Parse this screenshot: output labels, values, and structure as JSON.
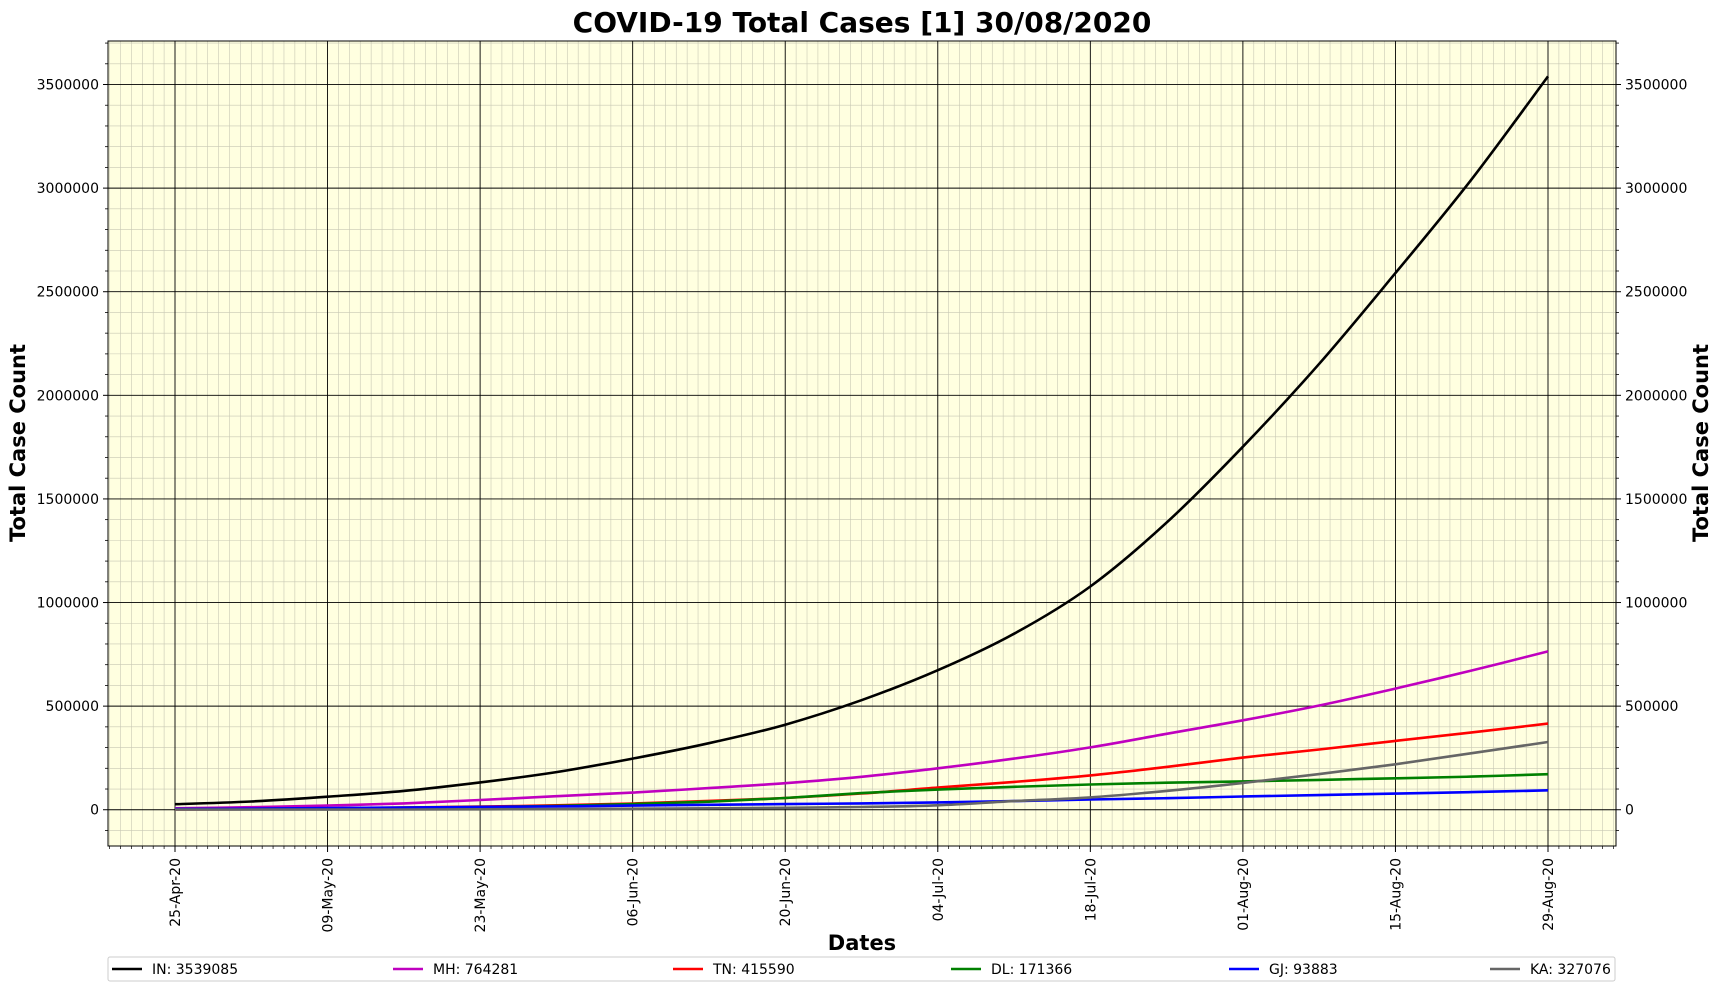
{
  "chart_data": {
    "type": "line",
    "title": "COVID-19 Total Cases [1] 30/08/2020",
    "xlabel": "Dates",
    "ylabel": "Total Case Count",
    "ylabel_right": "Total Case Count",
    "x": [
      "25-Apr-20",
      "02-May-20",
      "09-May-20",
      "16-May-20",
      "23-May-20",
      "30-May-20",
      "06-Jun-20",
      "13-Jun-20",
      "20-Jun-20",
      "27-Jun-20",
      "04-Jul-20",
      "11-Jul-20",
      "18-Jul-20",
      "25-Jul-20",
      "01-Aug-20",
      "08-Aug-20",
      "15-Aug-20",
      "22-Aug-20",
      "29-Aug-20"
    ],
    "x_tick_labels": [
      "25-Apr-20",
      "09-May-20",
      "23-May-20",
      "06-Jun-20",
      "20-Jun-20",
      "04-Jul-20",
      "18-Jul-20",
      "01-Aug-20",
      "15-Aug-20",
      "29-Aug-20"
    ],
    "y_ticks": [
      0,
      500000,
      1000000,
      1500000,
      2000000,
      2500000,
      3000000,
      3500000
    ],
    "ylim": [
      -175000,
      3710000
    ],
    "grid": true,
    "minor_grid": true,
    "legend_position": "bottom",
    "background": "#ffffe0",
    "series": [
      {
        "name": "IN: 3539085",
        "color": "#000000",
        "values": [
          26500,
          39900,
          62900,
          90900,
          131900,
          181800,
          246600,
          320900,
          410400,
          528800,
          673200,
          849500,
          1077600,
          1385600,
          1751900,
          2152000,
          2590000,
          3043000,
          3539085
        ]
      },
      {
        "name": "MH: 764281",
        "color": "#bf00bf",
        "values": [
          6800,
          12300,
          20200,
          30700,
          47200,
          65200,
          82900,
          104600,
          128200,
          159100,
          200000,
          246600,
          300900,
          366400,
          431700,
          503100,
          584800,
          671900,
          764281
        ]
      },
      {
        "name": "TN: 415590",
        "color": "#ff0000",
        "values": [
          1800,
          2800,
          6500,
          10500,
          15500,
          21200,
          30200,
          42700,
          56800,
          78300,
          107000,
          134200,
          165700,
          206700,
          251700,
          290900,
          332100,
          373400,
          415590
        ]
      },
      {
        "name": "DL: 171366",
        "color": "#008000",
        "values": [
          2600,
          4500,
          6500,
          9800,
          12900,
          18500,
          27700,
          38900,
          56700,
          80200,
          97200,
          110900,
          121600,
          130600,
          136700,
          144100,
          151900,
          160000,
          171366
        ]
      },
      {
        "name": "GJ: 93883",
        "color": "#0000ff",
        "values": [
          3000,
          5000,
          8200,
          10900,
          13700,
          16300,
          20100,
          23600,
          27200,
          30800,
          35300,
          41800,
          49400,
          55800,
          63700,
          70800,
          77700,
          85000,
          93883
        ]
      },
      {
        "name": "KA: 327076",
        "color": "#666666",
        "values": [
          500,
          600,
          800,
          1100,
          2100,
          2900,
          5200,
          6800,
          9200,
          13200,
          21500,
          41600,
          59700,
          90900,
          129300,
          172100,
          219400,
          272700,
          327076
        ]
      }
    ]
  }
}
